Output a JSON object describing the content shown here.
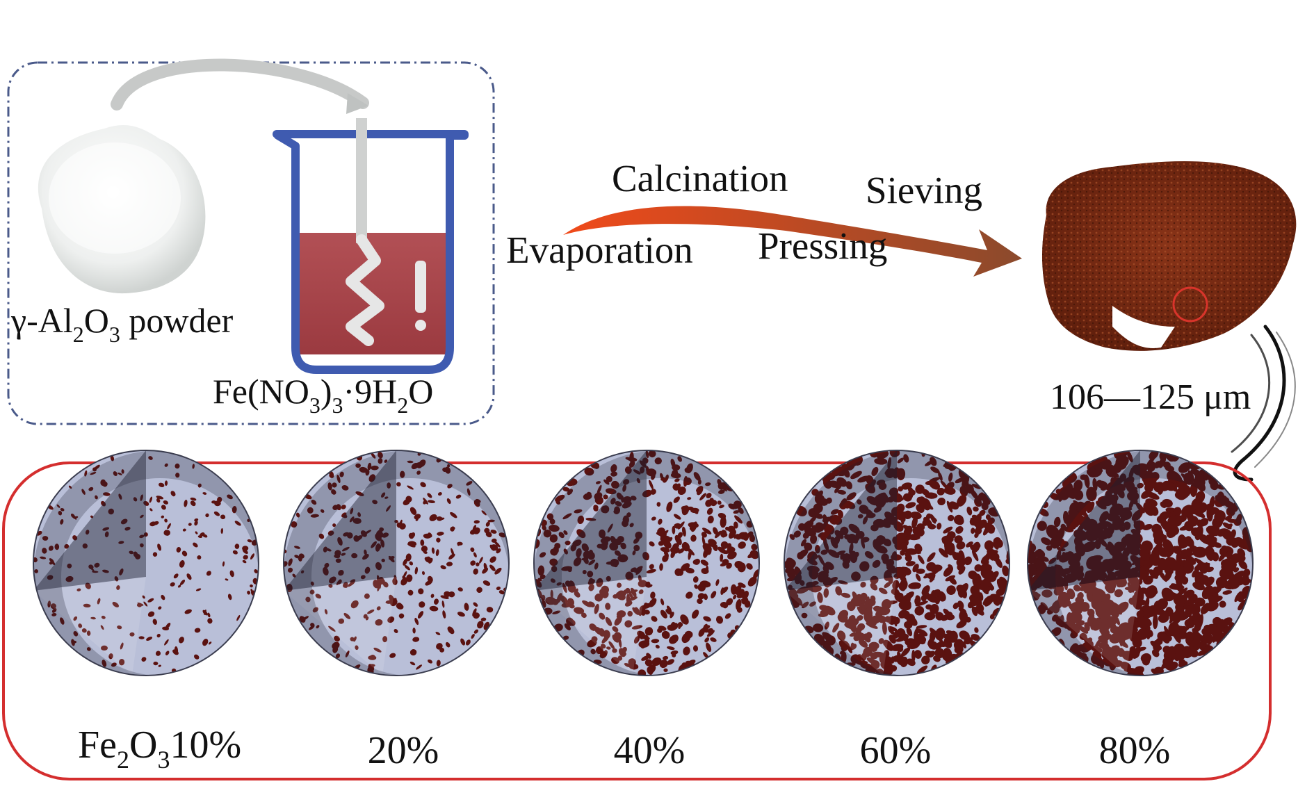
{
  "reagents": {
    "powder_label": {
      "prefix": "γ-Al",
      "sub1": "2",
      "mid": "O",
      "sub2": "3",
      "suffix": " powder"
    },
    "salt_label": {
      "p1": "Fe(NO",
      "sub1": "3",
      "p2": ")",
      "sub2": "3",
      "p3": "·9H",
      "sub3": "2",
      "p4": "O"
    }
  },
  "process": {
    "steps": [
      "Calcination",
      "Sieving",
      "Evaporation",
      "Pressing"
    ]
  },
  "product": {
    "size_label": "106—125 μm"
  },
  "spheres": [
    {
      "p1": "Fe",
      "sub1": "2",
      "p2": "O",
      "sub2": "3",
      "p3": "10%",
      "fraction": 0.1
    },
    {
      "p1": "20%",
      "fraction": 0.2
    },
    {
      "p1": "40%",
      "fraction": 0.4
    },
    {
      "p1": "60%",
      "fraction": 0.6
    },
    {
      "p1": "80%",
      "fraction": 0.8
    }
  ],
  "colors": {
    "beaker": "#3f5bb0",
    "solution": "#a8444a",
    "arrow_start": "#f04a1a",
    "arrow_end": "#8b4a2c",
    "product": "#7a2a14",
    "alumina": "#b9bfd8",
    "iron_oxide": "#5a1210",
    "frame_top": "#4a5a8a",
    "frame_bottom": "#d42e2e"
  }
}
